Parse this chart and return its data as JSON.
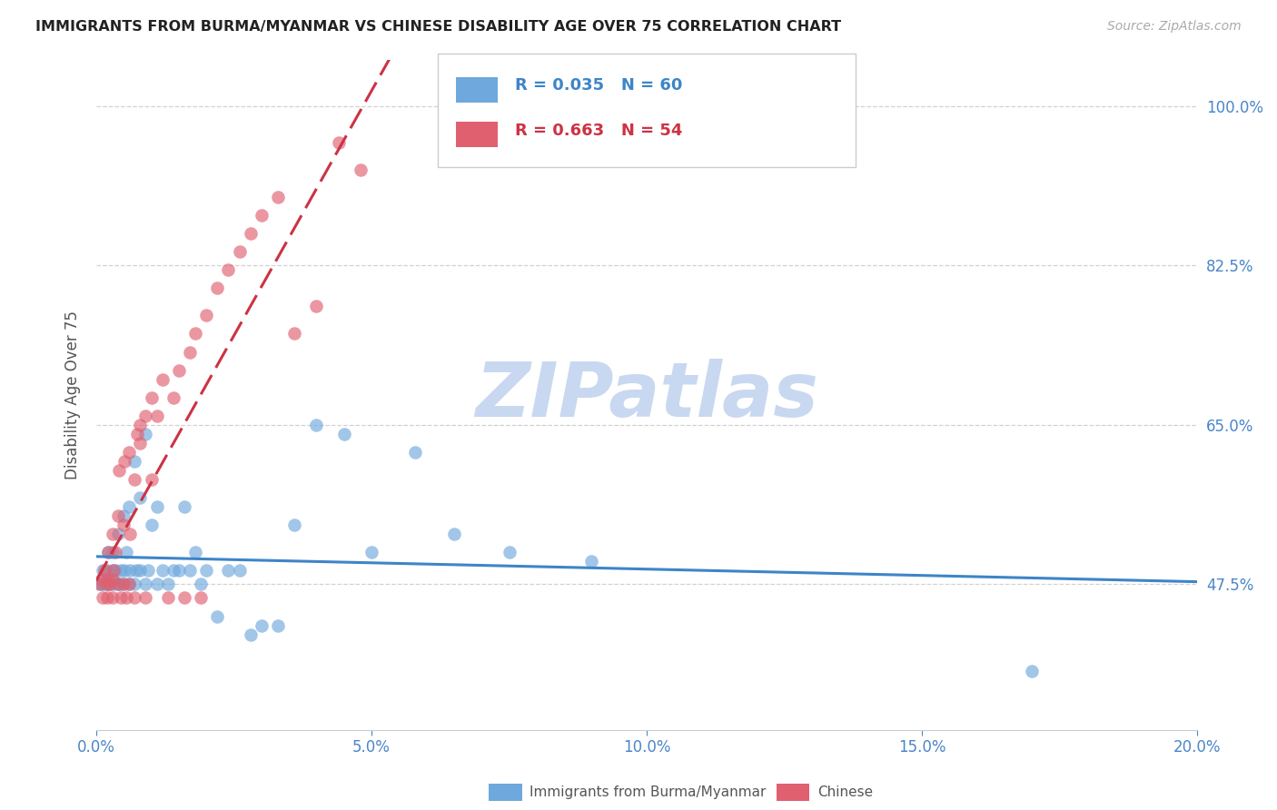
{
  "title": "IMMIGRANTS FROM BURMA/MYANMAR VS CHINESE DISABILITY AGE OVER 75 CORRELATION CHART",
  "source": "Source: ZipAtlas.com",
  "ylabel": "Disability Age Over 75",
  "yticks": [
    0.475,
    0.65,
    0.825,
    1.0
  ],
  "ytick_labels": [
    "47.5%",
    "65.0%",
    "82.5%",
    "100.0%"
  ],
  "xticks": [
    0.0,
    0.05,
    0.1,
    0.15,
    0.2
  ],
  "xtick_labels": [
    "0.0%",
    "5.0%",
    "10.0%",
    "15.0%",
    "20.0%"
  ],
  "xmin": 0.0,
  "xmax": 0.2,
  "ymin": 0.315,
  "ymax": 1.05,
  "legend_r1": "0.035",
  "legend_n1": "60",
  "legend_r2": "0.663",
  "legend_n2": "54",
  "legend_label1": "Immigrants from Burma/Myanmar",
  "legend_label2": "Chinese",
  "color_blue": "#6fa8dc",
  "color_pink": "#e06070",
  "color_blue_line": "#3d85c8",
  "color_pink_line": "#cc3344",
  "color_title": "#222222",
  "color_source": "#aaaaaa",
  "color_axis_ticks": "#4a86c8",
  "color_grid": "#cccccc",
  "watermark_text": "ZIPatlas",
  "watermark_color": "#c8d8f0",
  "background_color": "#ffffff",
  "scatter_alpha": 0.65,
  "scatter_size": 110,
  "blue_x": [
    0.0008,
    0.001,
    0.0012,
    0.0015,
    0.0018,
    0.002,
    0.002,
    0.0022,
    0.0025,
    0.003,
    0.003,
    0.003,
    0.0032,
    0.0035,
    0.004,
    0.004,
    0.0042,
    0.0045,
    0.005,
    0.005,
    0.0052,
    0.0055,
    0.006,
    0.006,
    0.0062,
    0.007,
    0.007,
    0.0072,
    0.008,
    0.008,
    0.009,
    0.009,
    0.0095,
    0.01,
    0.011,
    0.011,
    0.012,
    0.013,
    0.014,
    0.015,
    0.016,
    0.017,
    0.018,
    0.019,
    0.02,
    0.022,
    0.024,
    0.026,
    0.028,
    0.03,
    0.033,
    0.036,
    0.04,
    0.045,
    0.05,
    0.058,
    0.065,
    0.075,
    0.09,
    0.17
  ],
  "blue_y": [
    0.475,
    0.475,
    0.49,
    0.475,
    0.48,
    0.475,
    0.49,
    0.51,
    0.475,
    0.48,
    0.49,
    0.51,
    0.475,
    0.49,
    0.475,
    0.53,
    0.475,
    0.49,
    0.475,
    0.55,
    0.49,
    0.51,
    0.475,
    0.56,
    0.49,
    0.475,
    0.61,
    0.49,
    0.57,
    0.49,
    0.475,
    0.64,
    0.49,
    0.54,
    0.475,
    0.56,
    0.49,
    0.475,
    0.49,
    0.49,
    0.56,
    0.49,
    0.51,
    0.475,
    0.49,
    0.44,
    0.49,
    0.49,
    0.42,
    0.43,
    0.43,
    0.54,
    0.65,
    0.64,
    0.51,
    0.62,
    0.53,
    0.51,
    0.5,
    0.38
  ],
  "pink_x": [
    0.0005,
    0.001,
    0.0012,
    0.0015,
    0.002,
    0.002,
    0.002,
    0.0022,
    0.0025,
    0.003,
    0.003,
    0.003,
    0.0032,
    0.0035,
    0.004,
    0.004,
    0.0042,
    0.0045,
    0.005,
    0.005,
    0.0052,
    0.0055,
    0.006,
    0.006,
    0.0062,
    0.007,
    0.007,
    0.0075,
    0.008,
    0.008,
    0.009,
    0.009,
    0.01,
    0.01,
    0.011,
    0.012,
    0.013,
    0.014,
    0.015,
    0.016,
    0.017,
    0.018,
    0.019,
    0.02,
    0.022,
    0.024,
    0.026,
    0.028,
    0.03,
    0.033,
    0.036,
    0.04,
    0.044,
    0.048
  ],
  "pink_y": [
    0.475,
    0.48,
    0.46,
    0.49,
    0.475,
    0.48,
    0.46,
    0.51,
    0.475,
    0.48,
    0.46,
    0.53,
    0.49,
    0.51,
    0.475,
    0.55,
    0.6,
    0.46,
    0.475,
    0.54,
    0.61,
    0.46,
    0.475,
    0.62,
    0.53,
    0.59,
    0.46,
    0.64,
    0.63,
    0.65,
    0.46,
    0.66,
    0.59,
    0.68,
    0.66,
    0.7,
    0.46,
    0.68,
    0.71,
    0.46,
    0.73,
    0.75,
    0.46,
    0.77,
    0.8,
    0.82,
    0.84,
    0.86,
    0.88,
    0.9,
    0.75,
    0.78,
    0.96,
    0.93
  ]
}
